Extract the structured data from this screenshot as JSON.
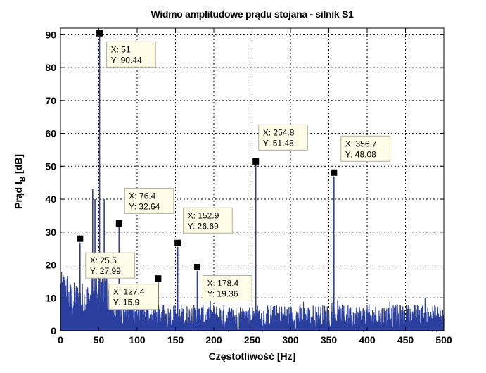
{
  "chart_data": {
    "type": "line",
    "title": "Widmo amplitudowe prądu stojana - silnik S1",
    "xlabel": "Częstotliwość [Hz]",
    "ylabel": {
      "main": "Prąd I",
      "sub": "B",
      "unit": " [dB]"
    },
    "xlim": [
      0,
      500
    ],
    "ylim": [
      0,
      92
    ],
    "xticks": [
      0,
      50,
      100,
      150,
      200,
      250,
      300,
      350,
      400,
      450,
      500
    ],
    "yticks": [
      0,
      10,
      20,
      30,
      40,
      50,
      60,
      70,
      80,
      90
    ],
    "grid": true,
    "series_color": "#2b3f9e",
    "peaks": [
      {
        "x": 25.5,
        "y": 27.99
      },
      {
        "x": 42,
        "y": 43
      },
      {
        "x": 45,
        "y": 40
      },
      {
        "x": 51,
        "y": 90.44
      },
      {
        "x": 57,
        "y": 40
      },
      {
        "x": 76.4,
        "y": 32.64
      },
      {
        "x": 127.4,
        "y": 15.9
      },
      {
        "x": 152.9,
        "y": 26.69
      },
      {
        "x": 178.4,
        "y": 19.36
      },
      {
        "x": 254.8,
        "y": 51.48
      },
      {
        "x": 356.7,
        "y": 48.08
      }
    ],
    "datatips": [
      {
        "x": 51,
        "y": 90.44,
        "line1": "X: 51",
        "line2": "Y: 90.44"
      },
      {
        "x": 25.5,
        "y": 27.99,
        "line1": "X: 25.5",
        "line2": "Y: 27.99"
      },
      {
        "x": 76.4,
        "y": 32.64,
        "line1": "X: 76.4",
        "line2": "Y: 32.64"
      },
      {
        "x": 127.4,
        "y": 15.9,
        "line1": "X: 127.4",
        "line2": "Y: 15.9"
      },
      {
        "x": 152.9,
        "y": 26.69,
        "line1": "X: 152.9",
        "line2": "Y: 26.69"
      },
      {
        "x": 178.4,
        "y": 19.36,
        "line1": "X: 178.4",
        "line2": "Y: 19.36"
      },
      {
        "x": 254.8,
        "y": 51.48,
        "line1": "X: 254.8",
        "line2": "Y: 51.48"
      },
      {
        "x": 356.7,
        "y": 48.08,
        "line1": "X: 356.7",
        "line2": "Y: 48.08"
      }
    ]
  }
}
